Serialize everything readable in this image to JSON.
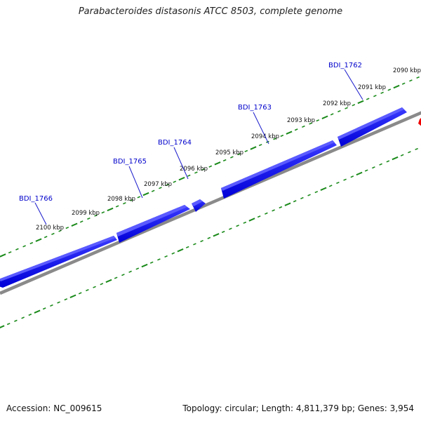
{
  "title": "Parabacteroides distasonis ATCC 8503, complete genome",
  "footer": {
    "accession": "Accession: NC_009615",
    "summary": "Topology: circular; Length: 4,811,379 bp; Genes: 3,954"
  },
  "colors": {
    "gene": "#0000ee",
    "gene_label": "#0000cc",
    "backbone": "#888888",
    "ruler_tick": "#1a8a1a",
    "other_strand_feature": "#ee0000"
  },
  "ruler_labels": [
    {
      "text": "2090 kbp"
    },
    {
      "text": "2091 kbp"
    },
    {
      "text": "2092 kbp"
    },
    {
      "text": "2093 kbp"
    },
    {
      "text": "2094 kbp"
    },
    {
      "text": "2095 kbp"
    },
    {
      "text": "2096 kbp"
    },
    {
      "text": "2097 kbp"
    },
    {
      "text": "2098 kbp"
    },
    {
      "text": "2099 kbp"
    },
    {
      "text": "2100 kbp"
    }
  ],
  "genes": [
    {
      "label": "BDI_1762"
    },
    {
      "label": "BDI_1763"
    },
    {
      "label": "BDI_1764"
    },
    {
      "label": "BDI_1765"
    },
    {
      "label": "BDI_1766"
    }
  ]
}
